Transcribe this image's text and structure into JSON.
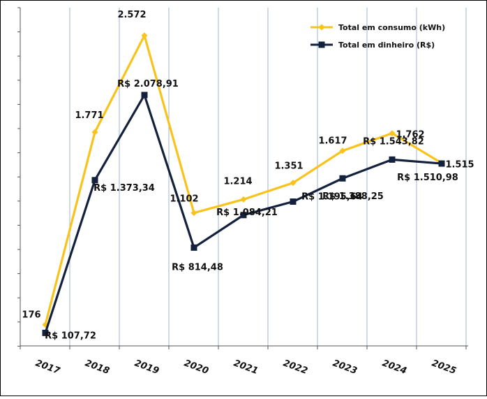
{
  "chart_data": {
    "type": "line",
    "title": "",
    "xlabel": "",
    "ylabel": "",
    "categories": [
      "2017",
      "2018",
      "2019",
      "2020",
      "2021",
      "2022",
      "2023",
      "2024",
      "2025"
    ],
    "grid": "vertical-only",
    "legend_position": "top-right",
    "series": [
      {
        "name": "Total em consumo (kWh)",
        "color": "#F9C31B",
        "marker": "diamond",
        "values": [
          176,
          1771,
          2572,
          1102,
          1214,
          1351,
          1617,
          1762,
          1515
        ],
        "labels": [
          "176",
          "1.771",
          "2.572",
          "1.102",
          "1.214",
          "1.351",
          "1.617",
          "1.762",
          "1.515"
        ]
      },
      {
        "name": "Total em dinheiro (R$)",
        "color": "#14213D",
        "marker": "square",
        "values": [
          107.72,
          1373.34,
          2078.91,
          814.48,
          1084.21,
          1195.64,
          1388.25,
          1543.82,
          1510.98
        ],
        "labels": [
          "R$ 107,72",
          "R$ 1.373,34",
          "R$ 2.078,91",
          "R$ 814,48",
          "R$ 1.084,21",
          "R$ 1.195,64",
          "R$ 1.388,25",
          "R$ 1.543,82",
          "R$ 1.510,98"
        ]
      }
    ]
  }
}
